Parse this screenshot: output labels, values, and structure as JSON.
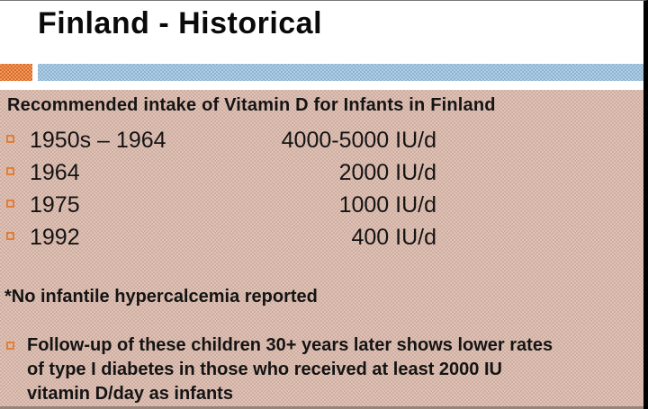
{
  "slide": {
    "title": "Finland - Historical",
    "content": {
      "heading": "Recommended intake of Vitamin D for Infants in Finland",
      "rows": [
        {
          "year": "1950s – 1964",
          "value": "4000-5000 IU/d"
        },
        {
          "year": "1964",
          "value": "2000 IU/d"
        },
        {
          "year": "1975",
          "value": "1000 IU/d"
        },
        {
          "year": "1992",
          "value": "400 IU/d"
        }
      ],
      "note": "*No infantile hypercalcemia reported",
      "followup_lines": [
        "Follow-up of these children 30+ years later shows lower rates",
        "of type I diabetes in those who received at least 2000 IU",
        "vitamin D/day as infants"
      ]
    },
    "colors": {
      "accent_orange": "#de7c3c",
      "accent_blue": "#9cc0da",
      "content_background": "#d6b6ac",
      "bullet_outline": "#e07f3a",
      "right_border": "#000000",
      "title_text": "#0a0a0a",
      "body_text": "#141414"
    }
  }
}
